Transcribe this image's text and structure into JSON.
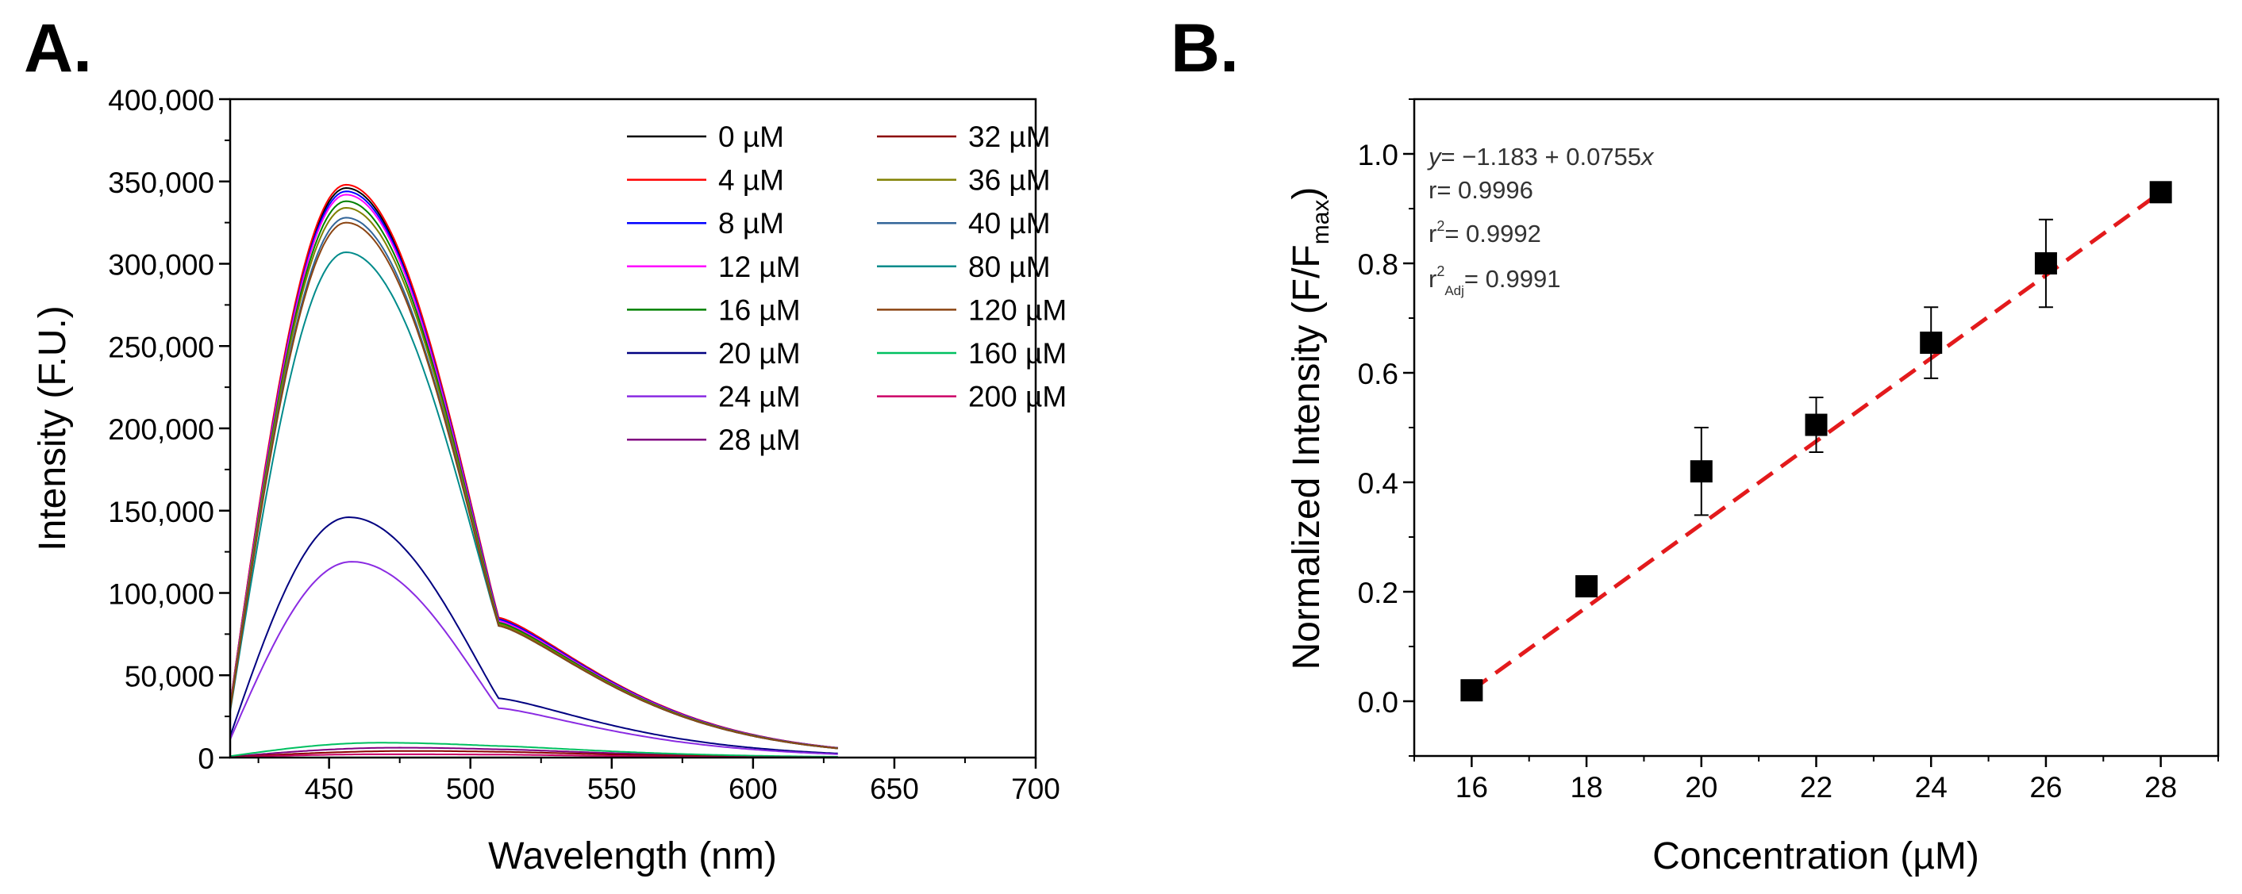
{
  "panel_labels": {
    "a": "A.",
    "b": "B."
  },
  "chart_data": [
    {
      "type": "line",
      "panel": "A.",
      "title": "",
      "xlabel": "Wavelength (nm)",
      "ylabel": "Intensity (F.U.)",
      "xlim": [
        415,
        700
      ],
      "ylim": [
        0,
        400000
      ],
      "xticks": [
        450,
        500,
        550,
        600,
        650,
        700
      ],
      "xtick_labels": [
        "450",
        "500",
        "550",
        "600",
        "650",
        "700"
      ],
      "yticks": [
        0,
        50000,
        100000,
        150000,
        200000,
        250000,
        300000,
        350000,
        400000
      ],
      "ytick_labels": [
        "0",
        "50,000",
        "100,000",
        "150,000",
        "200,000",
        "250,000",
        "300,000",
        "350,000",
        "400,000"
      ],
      "grid": false,
      "legend_position": "top-right",
      "unit": "µM",
      "series": [
        {
          "name": "0 µM",
          "conc": 0,
          "color": "#000000",
          "peak": 346000,
          "peak_x": 456,
          "height_510": 84000,
          "height_415": 32000
        },
        {
          "name": "4 µM",
          "conc": 4,
          "color": "#ff0000",
          "peak": 348000,
          "peak_x": 456,
          "height_510": 85000,
          "height_415": 32000
        },
        {
          "name": "8 µM",
          "conc": 8,
          "color": "#0000ff",
          "peak": 344000,
          "peak_x": 456,
          "height_510": 84000,
          "height_415": 31000
        },
        {
          "name": "12 µM",
          "conc": 12,
          "color": "#ff00ff",
          "peak": 342000,
          "peak_x": 456,
          "height_510": 83000,
          "height_415": 31000
        },
        {
          "name": "16 µM",
          "conc": 16,
          "color": "#008000",
          "peak": 338000,
          "peak_x": 456,
          "height_510": 82000,
          "height_415": 30000
        },
        {
          "name": "20 µM",
          "conc": 20,
          "color": "#000080",
          "peak": 146000,
          "peak_x": 457,
          "height_510": 36000,
          "height_415": 13000
        },
        {
          "name": "24 µM",
          "conc": 24,
          "color": "#8a2be2",
          "peak": 119000,
          "peak_x": 458,
          "height_510": 30000,
          "height_415": 11000
        },
        {
          "name": "28 µM",
          "conc": 28,
          "color": "#800080",
          "peak": 6000,
          "peak_x": 475,
          "height_510": 5000,
          "height_415": 500
        },
        {
          "name": "32 µM",
          "conc": 32,
          "color": "#8b0000",
          "peak": 4000,
          "peak_x": 480,
          "height_510": 3500,
          "height_415": 300
        },
        {
          "name": "36 µM",
          "conc": 36,
          "color": "#808000",
          "peak": 334000,
          "peak_x": 456,
          "height_510": 81000,
          "height_415": 30000
        },
        {
          "name": "40 µM",
          "conc": 40,
          "color": "#336699",
          "peak": 328000,
          "peak_x": 456,
          "height_510": 80000,
          "height_415": 29000
        },
        {
          "name": "80 µM",
          "conc": 80,
          "color": "#008b8b",
          "peak": 307000,
          "peak_x": 456,
          "height_510": 80000,
          "height_415": 28000
        },
        {
          "name": "120 µM",
          "conc": 120,
          "color": "#8b4513",
          "peak": 325000,
          "peak_x": 456,
          "height_510": 80000,
          "height_415": 29000
        },
        {
          "name": "160 µM",
          "conc": 160,
          "color": "#00c060",
          "peak": 9000,
          "peak_x": 468,
          "height_510": 7000,
          "height_415": 800
        },
        {
          "name": "200 µM",
          "conc": 200,
          "color": "#cc0066",
          "peak": 2000,
          "peak_x": 470,
          "height_510": 1800,
          "height_415": 200
        }
      ]
    },
    {
      "type": "scatter",
      "panel": "B.",
      "title": "",
      "xlabel": "Concentration (µM)",
      "ylabel_main": "Normalized Intensity (F/F",
      "ylabel_sub": "max",
      "ylabel_end": ")",
      "xlim": [
        15,
        29
      ],
      "ylim": [
        -0.1,
        1.1
      ],
      "xticks": [
        16,
        18,
        20,
        22,
        24,
        26,
        28
      ],
      "xtick_labels": [
        "16",
        "18",
        "20",
        "22",
        "24",
        "26",
        "28"
      ],
      "yticks": [
        0.0,
        0.2,
        0.4,
        0.6,
        0.8,
        1.0
      ],
      "ytick_labels": [
        "0.0",
        "0.2",
        "0.4",
        "0.6",
        "0.8",
        "1.0"
      ],
      "grid": false,
      "points": [
        {
          "x": 16,
          "y": 0.02,
          "err": 0.0
        },
        {
          "x": 18,
          "y": 0.21,
          "err": 0.0
        },
        {
          "x": 20,
          "y": 0.42,
          "err": 0.08
        },
        {
          "x": 22,
          "y": 0.505,
          "err": 0.05
        },
        {
          "x": 24,
          "y": 0.655,
          "err": 0.065
        },
        {
          "x": 26,
          "y": 0.8,
          "err": 0.08
        },
        {
          "x": 28,
          "y": 0.93,
          "err": 0.0
        }
      ],
      "fit": {
        "intercept": -1.183,
        "slope": 0.0755,
        "x_range": [
          16,
          28
        ],
        "color": "#e31a1c"
      },
      "annotations": {
        "equation_y": "y",
        "equation_rest": "= −1.183 + 0.0755",
        "equation_x": "x",
        "r": "r= 0.9996",
        "r2_prefix": "r",
        "r2_sup": "2",
        "r2_value": "= 0.9992",
        "r2adj_prefix": "r",
        "r2adj_sup": "2",
        "r2adj_sub": "Adj",
        "r2adj_value": "= 0.9991"
      }
    }
  ]
}
